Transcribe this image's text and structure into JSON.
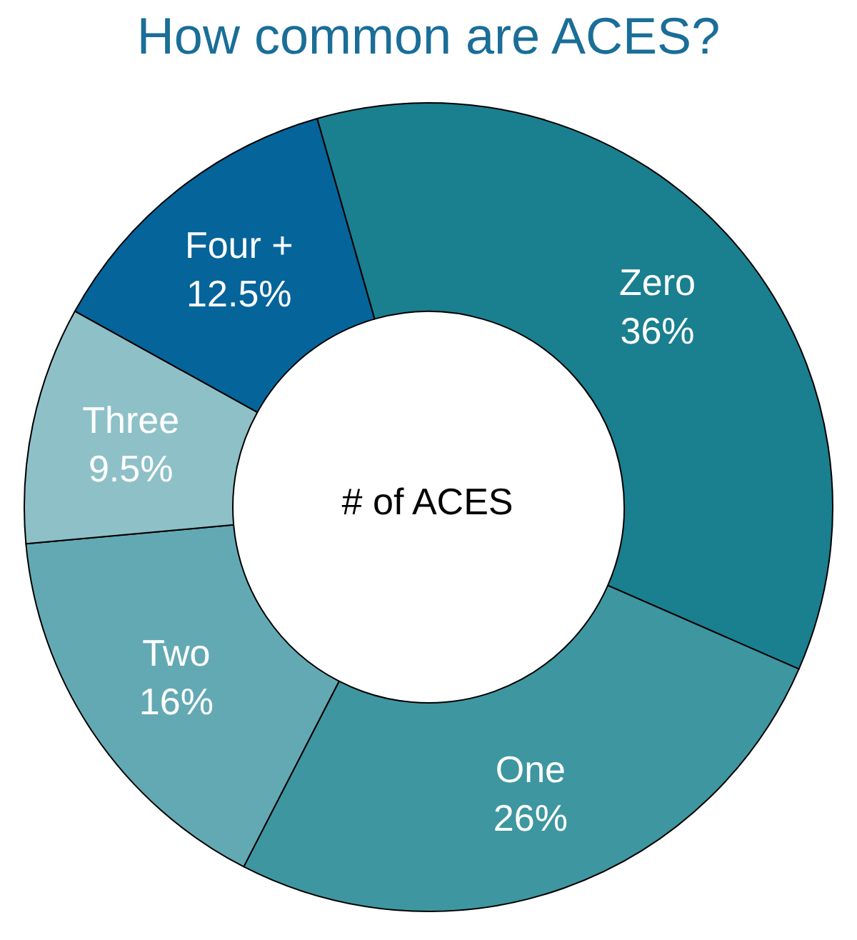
{
  "chart_data": {
    "type": "donut",
    "title": "How common are ACES?",
    "categories": [
      "Zero",
      "One",
      "Two",
      "Three",
      "Four +"
    ],
    "values": [
      36,
      26,
      16,
      9.5,
      12.5
    ],
    "value_labels": [
      "36%",
      "26%",
      "16%",
      "9.5%",
      "12.5%"
    ],
    "colors": [
      "#1a7f8f",
      "#3e96a0",
      "#63a9b3",
      "#8ec0c8",
      "#05649a"
    ],
    "annotations": [
      "# of ACES"
    ],
    "legend": false
  }
}
